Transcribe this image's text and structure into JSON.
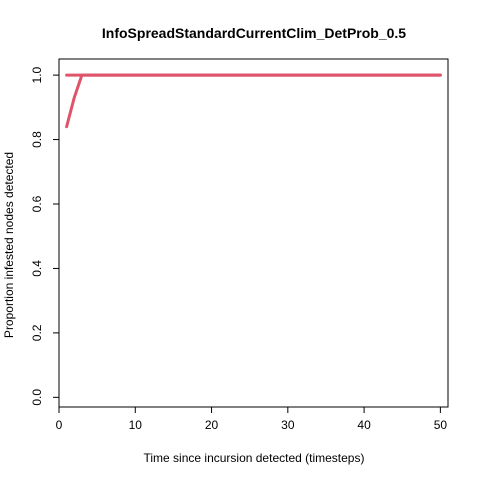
{
  "chart_data": {
    "type": "line",
    "title": "InfoSpreadStandardCurrentClim_DetProb_0.5",
    "xlabel": "Time since incursion detected (timesteps)",
    "ylabel": "Proportion infested nodes detected",
    "xlim": [
      0,
      51
    ],
    "ylim": [
      -0.03,
      1.05
    ],
    "xticks": [
      "0",
      "10",
      "20",
      "30",
      "40",
      "50"
    ],
    "xtick_values": [
      0,
      10,
      20,
      30,
      40,
      50
    ],
    "yticks": [
      "0.0",
      "0.2",
      "0.4",
      "0.6",
      "0.8",
      "1.0"
    ],
    "ytick_values": [
      0,
      0.2,
      0.4,
      0.6,
      0.8,
      1.0
    ],
    "grid": false,
    "line_color": "#DF536B",
    "series": [
      {
        "x": [
          1,
          2,
          3,
          4,
          5,
          6,
          7,
          8,
          9,
          10,
          11,
          12,
          13,
          14,
          15,
          16,
          17,
          18,
          19,
          20,
          21,
          22,
          23,
          24,
          25,
          26,
          27,
          28,
          29,
          30,
          31,
          32,
          33,
          34,
          35,
          36,
          37,
          38,
          39,
          40,
          41,
          42,
          43,
          44,
          45,
          46,
          47,
          48,
          49,
          50
        ],
        "y": [
          0.84,
          0.93,
          1.0,
          1.0,
          1.0,
          1.0,
          1.0,
          1.0,
          1.0,
          1.0,
          1.0,
          1.0,
          1.0,
          1.0,
          1.0,
          1.0,
          1.0,
          1.0,
          1.0,
          1.0,
          1.0,
          1.0,
          1.0,
          1.0,
          1.0,
          1.0,
          1.0,
          1.0,
          1.0,
          1.0,
          1.0,
          1.0,
          1.0,
          1.0,
          1.0,
          1.0,
          1.0,
          1.0,
          1.0,
          1.0,
          1.0,
          1.0,
          1.0,
          1.0,
          1.0,
          1.0,
          1.0,
          1.0,
          1.0,
          1.0
        ]
      },
      {
        "x": [
          1,
          2,
          3,
          4,
          5,
          6,
          7,
          8,
          9,
          10,
          11,
          12,
          13,
          14,
          15,
          16,
          17,
          18,
          19,
          20,
          21,
          22,
          23,
          24,
          25,
          26,
          27,
          28,
          29,
          30,
          31,
          32,
          33,
          34,
          35,
          36,
          37,
          38,
          39,
          40,
          41,
          42,
          43,
          44,
          45,
          46,
          47,
          48,
          49,
          50
        ],
        "y": [
          1.0,
          1.0,
          1.0,
          1.0,
          1.0,
          1.0,
          1.0,
          1.0,
          1.0,
          1.0,
          1.0,
          1.0,
          1.0,
          1.0,
          1.0,
          1.0,
          1.0,
          1.0,
          1.0,
          1.0,
          1.0,
          1.0,
          1.0,
          1.0,
          1.0,
          1.0,
          1.0,
          1.0,
          1.0,
          1.0,
          1.0,
          1.0,
          1.0,
          1.0,
          1.0,
          1.0,
          1.0,
          1.0,
          1.0,
          1.0,
          1.0,
          1.0,
          1.0,
          1.0,
          1.0,
          1.0,
          1.0,
          1.0,
          1.0,
          1.0
        ]
      }
    ]
  }
}
